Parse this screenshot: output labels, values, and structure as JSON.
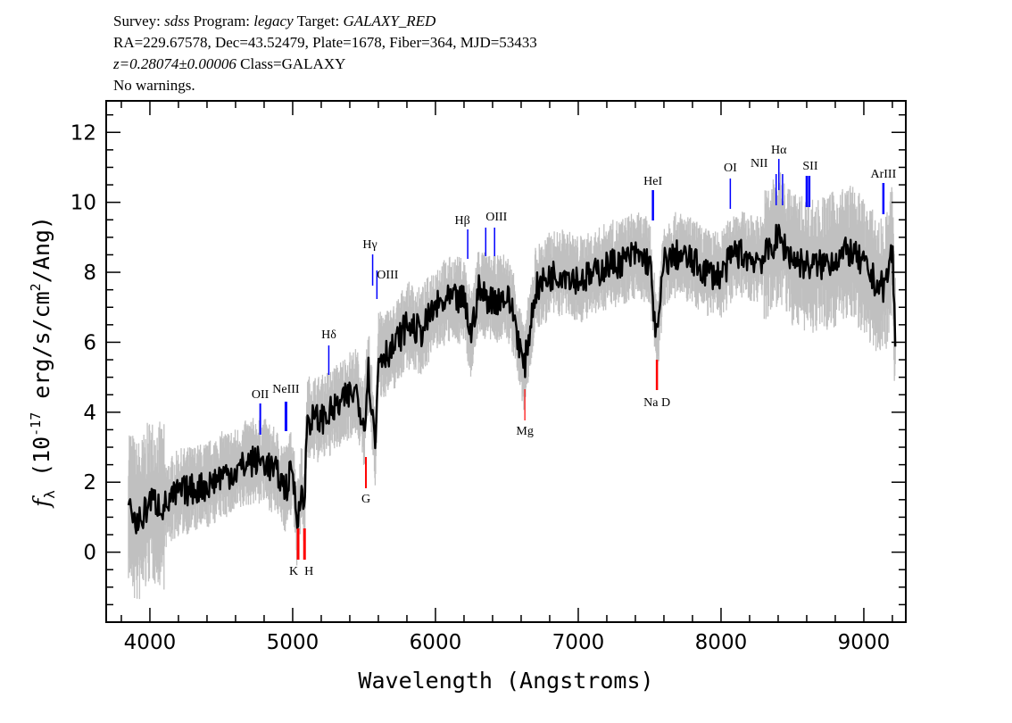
{
  "header": {
    "line1": {
      "survey_label": "Survey:",
      "survey": "sdss",
      "program_label": "Program:",
      "program": "legacy",
      "target_label": "Target:",
      "target": "GALAXY_RED"
    },
    "line2": "RA=229.67578, Dec=43.52479, Plate=1678, Fiber=364, MJD=53433",
    "line3": {
      "redshift": "z=0.28074±0.00006",
      "class": "Class=GALAXY"
    },
    "line4": "No warnings."
  },
  "chart_data": {
    "type": "line",
    "title": "",
    "xlabel": "Wavelength (Angstroms)",
    "ylabel": {
      "symbol": "f",
      "subscript": "λ",
      "text_a": " (10",
      "exp": "-17",
      "text_b": " erg/s/cm",
      "exp2": "2",
      "text_c": "/Ang)"
    },
    "xlim": [
      3694,
      9294
    ],
    "ylim": [
      -2.0,
      12.9
    ],
    "xticks": [
      4000,
      5000,
      6000,
      7000,
      8000,
      9000
    ],
    "yticks": [
      0,
      2,
      4,
      6,
      8,
      10,
      12
    ],
    "grid": false,
    "colors": {
      "flux": "#000000",
      "error": "#c0c0c0",
      "emission": "#0000ff",
      "absorption": "#ff0000"
    },
    "series": [
      {
        "role": "flux",
        "x": [
          3850,
          3900,
          3950,
          4000,
          4100,
          4200,
          4300,
          4400,
          4500,
          4600,
          4700,
          4800,
          4900,
          4950,
          5000,
          5030,
          5060,
          5080,
          5100,
          5200,
          5300,
          5400,
          5450,
          5500,
          5530,
          5580,
          5600,
          5700,
          5800,
          5900,
          6000,
          6100,
          6200,
          6250,
          6300,
          6350,
          6400,
          6500,
          6550,
          6620,
          6700,
          6800,
          6900,
          7000,
          7100,
          7200,
          7300,
          7400,
          7500,
          7550,
          7600,
          7700,
          7800,
          7900,
          8000,
          8100,
          8200,
          8300,
          8400,
          8500,
          8600,
          8700,
          8800,
          8900,
          9000,
          9100,
          9150,
          9200,
          9220
        ],
        "y": [
          1.5,
          0.8,
          1.0,
          1.5,
          1.3,
          1.7,
          1.8,
          1.9,
          2.2,
          2.3,
          2.6,
          2.6,
          2.2,
          1.8,
          2.4,
          0.8,
          2.0,
          1.0,
          3.8,
          3.8,
          4.1,
          4.5,
          4.6,
          3.6,
          5.2,
          3.0,
          5.6,
          5.8,
          6.5,
          6.3,
          7.0,
          7.2,
          7.2,
          6.2,
          7.5,
          7.3,
          7.2,
          7.3,
          6.8,
          5.2,
          7.5,
          7.9,
          8.0,
          7.8,
          7.9,
          8.2,
          8.3,
          8.5,
          8.3,
          6.0,
          8.3,
          8.5,
          8.3,
          8.0,
          7.9,
          8.6,
          8.4,
          8.4,
          9.0,
          8.4,
          8.2,
          8.2,
          8.4,
          8.6,
          8.2,
          7.6,
          7.6,
          8.7,
          6.0
        ]
      }
    ],
    "spectral_lines": [
      {
        "label": "OII",
        "wavelength": 4773,
        "type": "emission"
      },
      {
        "label": "NeIII",
        "wavelength": 4953,
        "type": "emission"
      },
      {
        "label": "Hδ",
        "wavelength": 5253,
        "type": "emission"
      },
      {
        "label": "Hγ",
        "wavelength": 5560,
        "type": "emission"
      },
      {
        "label": "OIII",
        "wavelength": 5590,
        "type": "emission"
      },
      {
        "label": "Hβ",
        "wavelength": 6226,
        "type": "emission"
      },
      {
        "label": "OIII",
        "wavelength": 6352,
        "type": "emission"
      },
      {
        "label": "",
        "wavelength": 6414,
        "type": "emission"
      },
      {
        "label": "HeI",
        "wavelength": 7523,
        "type": "emission"
      },
      {
        "label": "OI",
        "wavelength": 8065,
        "type": "emission"
      },
      {
        "label": "NII",
        "wavelength": 8386,
        "type": "emission"
      },
      {
        "label": "Hα",
        "wavelength": 8405,
        "type": "emission"
      },
      {
        "label": "NII",
        "wavelength": 8431,
        "type": "emission"
      },
      {
        "label": "SII",
        "wavelength": 8600,
        "type": "emission"
      },
      {
        "label": "",
        "wavelength": 8618,
        "type": "emission"
      },
      {
        "label": "ArIII",
        "wavelength": 9137,
        "type": "emission"
      },
      {
        "label": "K",
        "wavelength": 5038,
        "type": "absorption"
      },
      {
        "label": "H",
        "wavelength": 5083,
        "type": "absorption"
      },
      {
        "label": "G",
        "wavelength": 5513,
        "type": "absorption"
      },
      {
        "label": "Mg",
        "wavelength": 6626,
        "type": "absorption"
      },
      {
        "label": "Na  D",
        "wavelength": 7551,
        "type": "absorption"
      }
    ]
  }
}
